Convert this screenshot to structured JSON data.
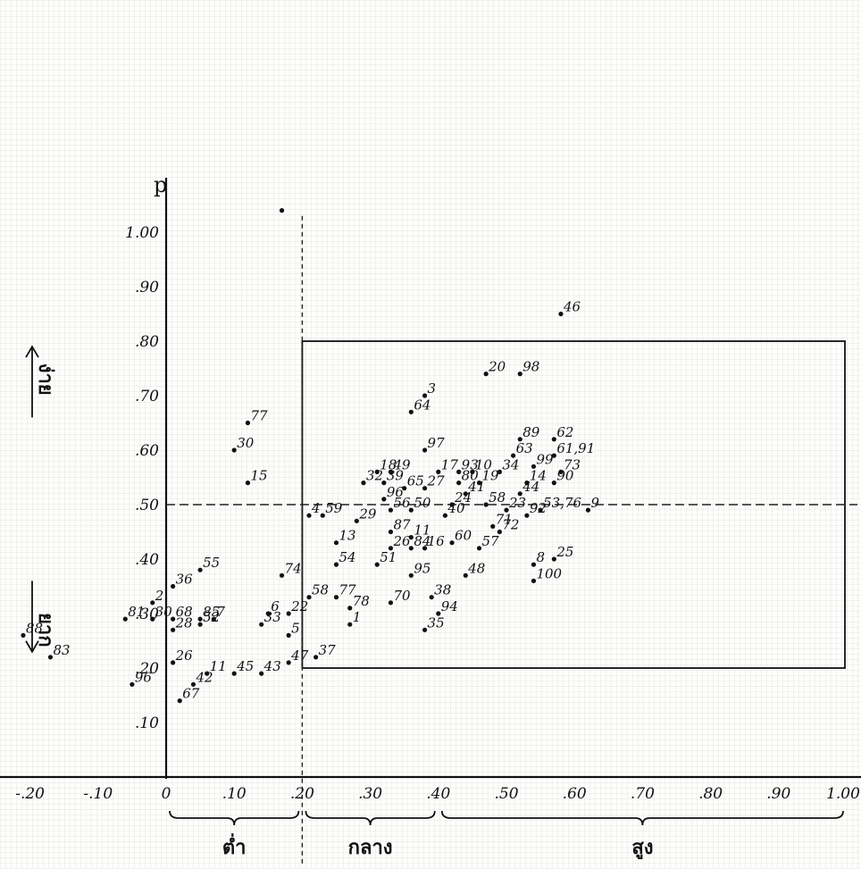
{
  "chart_data": {
    "type": "scatter",
    "y_axis_name": "p",
    "xlim": [
      -0.25,
      1.02
    ],
    "ylim": [
      -0.04,
      1.1
    ],
    "x_ticks": [
      {
        "v": -0.2,
        "label": "-.20"
      },
      {
        "v": -0.1,
        "label": "-.10"
      },
      {
        "v": 0,
        "label": "0"
      },
      {
        "v": 0.1,
        "label": ".10"
      },
      {
        "v": 0.2,
        "label": ".20"
      },
      {
        "v": 0.3,
        "label": ".30"
      },
      {
        "v": 0.4,
        "label": ".40"
      },
      {
        "v": 0.5,
        "label": ".50"
      },
      {
        "v": 0.6,
        "label": ".60"
      },
      {
        "v": 0.7,
        "label": ".70"
      },
      {
        "v": 0.8,
        "label": ".80"
      },
      {
        "v": 0.9,
        "label": ".90"
      },
      {
        "v": 1.0,
        "label": "1.00"
      }
    ],
    "y_ticks": [
      {
        "v": 1.0,
        "label": "1.00"
      },
      {
        "v": 0.9,
        "label": ".90"
      },
      {
        "v": 0.8,
        "label": ".80"
      },
      {
        "v": 0.7,
        "label": ".70"
      },
      {
        "v": 0.6,
        "label": ".60"
      },
      {
        "v": 0.5,
        "label": ".50"
      },
      {
        "v": 0.4,
        "label": ".40"
      },
      {
        "v": 0.3,
        "label": ".30"
      },
      {
        "v": 0.2,
        "label": ".20"
      },
      {
        "v": 0.1,
        "label": ".10"
      }
    ],
    "x_groups": [
      {
        "label": "ต่ำ",
        "from": 0.0,
        "to": 0.2
      },
      {
        "label": "กลาง",
        "from": 0.2,
        "to": 0.4
      },
      {
        "label": "สูง",
        "from": 0.4,
        "to": 1.0
      }
    ],
    "y_direction": {
      "top": "ง่าย",
      "bottom": "ยาก"
    },
    "region_box": {
      "x_from": 0.2,
      "x_to": 1.0,
      "y_from": 0.2,
      "y_to": 0.8
    },
    "reference_lines": {
      "x_dashed": 0.2,
      "y_dashed": 0.5
    },
    "points": [
      {
        "id": "46",
        "x": 0.58,
        "y": 0.85
      },
      {
        "id": "20",
        "x": 0.47,
        "y": 0.74
      },
      {
        "id": "98",
        "x": 0.52,
        "y": 0.74
      },
      {
        "id": "3",
        "x": 0.38,
        "y": 0.7
      },
      {
        "id": "64",
        "x": 0.36,
        "y": 0.67
      },
      {
        "id": "89",
        "x": 0.52,
        "y": 0.62
      },
      {
        "id": "62",
        "x": 0.57,
        "y": 0.62
      },
      {
        "id": "97",
        "x": 0.38,
        "y": 0.6
      },
      {
        "id": "63",
        "x": 0.51,
        "y": 0.59
      },
      {
        "id": "61,91",
        "x": 0.57,
        "y": 0.59
      },
      {
        "id": "99",
        "x": 0.54,
        "y": 0.57
      },
      {
        "id": "73",
        "x": 0.58,
        "y": 0.56
      },
      {
        "id": "18",
        "x": 0.31,
        "y": 0.56
      },
      {
        "id": "49",
        "x": 0.33,
        "y": 0.56
      },
      {
        "id": "17",
        "x": 0.4,
        "y": 0.56
      },
      {
        "id": "93",
        "x": 0.43,
        "y": 0.56
      },
      {
        "id": "10",
        "x": 0.45,
        "y": 0.56
      },
      {
        "id": "34",
        "x": 0.49,
        "y": 0.56
      },
      {
        "id": "32",
        "x": 0.29,
        "y": 0.54
      },
      {
        "id": "39",
        "x": 0.32,
        "y": 0.54
      },
      {
        "id": "65",
        "x": 0.35,
        "y": 0.53
      },
      {
        "id": "27",
        "x": 0.38,
        "y": 0.53
      },
      {
        "id": "80",
        "x": 0.43,
        "y": 0.54
      },
      {
        "id": "19",
        "x": 0.46,
        "y": 0.54
      },
      {
        "id": "14",
        "x": 0.53,
        "y": 0.54
      },
      {
        "id": "90",
        "x": 0.57,
        "y": 0.54
      },
      {
        "id": "96",
        "x": 0.32,
        "y": 0.51
      },
      {
        "id": "41",
        "x": 0.44,
        "y": 0.52
      },
      {
        "id": "44",
        "x": 0.52,
        "y": 0.52
      },
      {
        "id": "56",
        "x": 0.33,
        "y": 0.49
      },
      {
        "id": "50",
        "x": 0.36,
        "y": 0.49
      },
      {
        "id": "24",
        "x": 0.42,
        "y": 0.5
      },
      {
        "id": "58",
        "x": 0.47,
        "y": 0.5
      },
      {
        "id": "23",
        "x": 0.5,
        "y": 0.49
      },
      {
        "id": "53,76",
        "x": 0.55,
        "y": 0.49
      },
      {
        "id": "9",
        "x": 0.62,
        "y": 0.49
      },
      {
        "id": "4",
        "x": 0.21,
        "y": 0.48
      },
      {
        "id": "59",
        "x": 0.23,
        "y": 0.48
      },
      {
        "id": "29",
        "x": 0.28,
        "y": 0.47
      },
      {
        "id": "40",
        "x": 0.41,
        "y": 0.48
      },
      {
        "id": "92",
        "x": 0.53,
        "y": 0.48
      },
      {
        "id": "71",
        "x": 0.48,
        "y": 0.46
      },
      {
        "id": "87",
        "x": 0.33,
        "y": 0.45
      },
      {
        "id": "11",
        "x": 0.36,
        "y": 0.44
      },
      {
        "id": "72",
        "x": 0.49,
        "y": 0.45
      },
      {
        "id": "13",
        "x": 0.25,
        "y": 0.43
      },
      {
        "id": "26",
        "x": 0.33,
        "y": 0.42
      },
      {
        "id": "84",
        "x": 0.36,
        "y": 0.42
      },
      {
        "id": "16",
        "x": 0.38,
        "y": 0.42
      },
      {
        "id": "60",
        "x": 0.42,
        "y": 0.43
      },
      {
        "id": "57",
        "x": 0.46,
        "y": 0.42
      },
      {
        "id": "8",
        "x": 0.54,
        "y": 0.39
      },
      {
        "id": "25",
        "x": 0.57,
        "y": 0.4
      },
      {
        "id": "54",
        "x": 0.25,
        "y": 0.39
      },
      {
        "id": "51",
        "x": 0.31,
        "y": 0.39
      },
      {
        "id": "95",
        "x": 0.36,
        "y": 0.37
      },
      {
        "id": "48",
        "x": 0.44,
        "y": 0.37
      },
      {
        "id": "100",
        "x": 0.54,
        "y": 0.36
      },
      {
        "id": "58",
        "x": 0.21,
        "y": 0.33
      },
      {
        "id": "77",
        "x": 0.25,
        "y": 0.33
      },
      {
        "id": "78",
        "x": 0.27,
        "y": 0.31
      },
      {
        "id": "70",
        "x": 0.33,
        "y": 0.32
      },
      {
        "id": "38",
        "x": 0.39,
        "y": 0.33
      },
      {
        "id": "94",
        "x": 0.4,
        "y": 0.3
      },
      {
        "id": "1",
        "x": 0.27,
        "y": 0.28
      },
      {
        "id": "35",
        "x": 0.38,
        "y": 0.27
      },
      {
        "id": "37",
        "x": 0.22,
        "y": 0.22
      },
      {
        "id": "77",
        "x": 0.12,
        "y": 0.65
      },
      {
        "id": "30",
        "x": 0.1,
        "y": 0.6
      },
      {
        "id": "15",
        "x": 0.12,
        "y": 0.54
      },
      {
        "id": "55",
        "x": 0.05,
        "y": 0.38
      },
      {
        "id": "36",
        "x": 0.01,
        "y": 0.35
      },
      {
        "id": "74",
        "x": 0.17,
        "y": 0.37
      },
      {
        "id": "2",
        "x": -0.02,
        "y": 0.32
      },
      {
        "id": "81",
        "x": -0.06,
        "y": 0.29
      },
      {
        "id": "30",
        "x": -0.02,
        "y": 0.29
      },
      {
        "id": "68",
        "x": 0.01,
        "y": 0.29
      },
      {
        "id": "85",
        "x": 0.05,
        "y": 0.29
      },
      {
        "id": "7",
        "x": 0.07,
        "y": 0.29
      },
      {
        "id": "6",
        "x": 0.15,
        "y": 0.3
      },
      {
        "id": "22",
        "x": 0.18,
        "y": 0.3
      },
      {
        "id": "52",
        "x": 0.05,
        "y": 0.28
      },
      {
        "id": "33",
        "x": 0.14,
        "y": 0.28
      },
      {
        "id": "5",
        "x": 0.18,
        "y": 0.26
      },
      {
        "id": "28",
        "x": 0.01,
        "y": 0.27
      },
      {
        "id": "88",
        "x": -0.21,
        "y": 0.26
      },
      {
        "id": "83",
        "x": -0.17,
        "y": 0.22
      },
      {
        "id": "26",
        "x": 0.01,
        "y": 0.21
      },
      {
        "id": "47",
        "x": 0.18,
        "y": 0.21
      },
      {
        "id": "11",
        "x": 0.06,
        "y": 0.19
      },
      {
        "id": "45",
        "x": 0.1,
        "y": 0.19
      },
      {
        "id": "43",
        "x": 0.14,
        "y": 0.19
      },
      {
        "id": "42",
        "x": 0.04,
        "y": 0.17
      },
      {
        "id": "96",
        "x": -0.05,
        "y": 0.17
      },
      {
        "id": "67",
        "x": 0.02,
        "y": 0.14
      },
      {
        "id": "",
        "x": 0.17,
        "y": 1.04
      }
    ]
  }
}
